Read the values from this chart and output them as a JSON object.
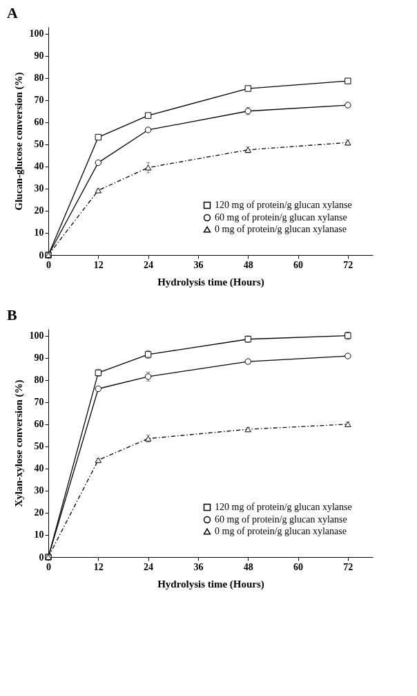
{
  "chart_data": [
    {
      "type": "line",
      "title": "A",
      "xlabel": "Hydrolysis time (Hours)",
      "ylabel": "Glucan-glucose conversion (%)",
      "x": [
        0,
        12,
        24,
        48,
        72
      ],
      "xlim": [
        0,
        78
      ],
      "xticks": [
        0,
        12,
        24,
        36,
        48,
        60,
        72
      ],
      "ylim": [
        0,
        103
      ],
      "yticks": [
        0,
        10,
        20,
        30,
        40,
        50,
        60,
        70,
        80,
        90,
        100
      ],
      "grid": false,
      "legend": "bottom right",
      "series": [
        {
          "name": "120 mg of protein/g glucan xylanse",
          "color": "#000000",
          "marker": "square",
          "line_style": "solid",
          "values": [
            0,
            53.2,
            63,
            75.2,
            78.6
          ],
          "errors": [
            null,
            0.7,
            0.8,
            0.8,
            0.8
          ]
        },
        {
          "name": "60 mg of protein/g glucan xylanse",
          "color": "#000000",
          "marker": "circle",
          "line_style": "solid",
          "values": [
            0,
            41.7,
            56.5,
            65,
            67.7
          ],
          "errors": [
            null,
            0.7,
            0.8,
            1.6,
            0.8
          ]
        },
        {
          "name": "0 mg of protein/g glucan xylanase",
          "color": "#000000",
          "marker": "triangle",
          "line_style": "dashdot",
          "values": [
            0,
            29.2,
            39.5,
            47.5,
            50.8
          ],
          "errors": [
            null,
            0.7,
            2.3,
            1.3,
            1.2
          ]
        }
      ]
    },
    {
      "type": "line",
      "title": "B",
      "xlabel": "Hydrolysis time (Hours)",
      "ylabel": "Xylan-xylose conversion (%)",
      "x": [
        0,
        12,
        24,
        48,
        72
      ],
      "xlim": [
        0,
        78
      ],
      "xticks": [
        0,
        12,
        24,
        36,
        48,
        60,
        72
      ],
      "ylim": [
        0,
        103
      ],
      "yticks": [
        0,
        10,
        20,
        30,
        40,
        50,
        60,
        70,
        80,
        90,
        100
      ],
      "grid": false,
      "legend": "bottom right",
      "series": [
        {
          "name": "120 mg of protein/g glucan xylanse",
          "color": "#000000",
          "marker": "square",
          "line_style": "solid",
          "values": [
            0,
            83.2,
            91.5,
            98.4,
            100
          ],
          "errors": [
            null,
            1.6,
            1.8,
            1.5,
            1.7
          ]
        },
        {
          "name": "60 mg of protein/g glucan xylanse",
          "color": "#000000",
          "marker": "circle",
          "line_style": "solid",
          "values": [
            0,
            76,
            81.5,
            88.3,
            90.8
          ],
          "errors": [
            null,
            0.8,
            2,
            0.8,
            0.6
          ]
        },
        {
          "name": "0 mg of protein/g glucan xylanase",
          "color": "#000000",
          "marker": "triangle",
          "line_style": "dashdot",
          "values": [
            0,
            43.8,
            53.5,
            57.7,
            60
          ],
          "errors": [
            null,
            0.7,
            1.6,
            0.8,
            1
          ]
        }
      ]
    }
  ]
}
